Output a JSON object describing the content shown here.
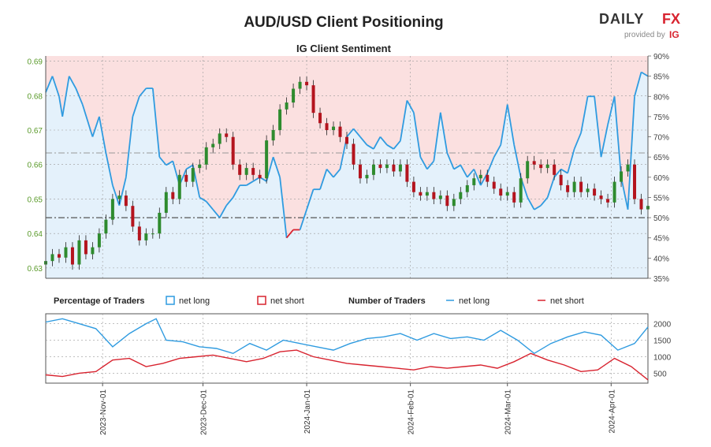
{
  "title": "AUD/USD Client Positioning",
  "subtitle": "IG Client Sentiment",
  "brand": {
    "name_left": "DAILY",
    "name_right": "FX",
    "tagline": "provided by",
    "tagline_brand": "IG"
  },
  "colors": {
    "long": "#2f9be0",
    "short": "#d8232f",
    "long_fill": "#e4f1fb",
    "short_fill": "#fbe0e0",
    "candle_up": "#2e8b2e",
    "candle_down": "#b4141e",
    "axis_left": "#5a9a2a"
  },
  "legend": {
    "pct_title": "Percentage of Traders",
    "pct_long": "net long",
    "pct_short": "net short",
    "num_title": "Number of Traders",
    "num_long": "net long",
    "num_short": "net short"
  },
  "chart_data": [
    {
      "type": "line",
      "name": "price-and-sentiment",
      "x_ticks": [
        "2023-Nov-01",
        "2023-Dec-01",
        "2024-Jan-01",
        "2024-Feb-01",
        "2024-Mar-01",
        "2024-Apr-01"
      ],
      "x_range": [
        "2023-10-15",
        "2024-04-12"
      ],
      "y_left": {
        "ticks": [
          "0.63",
          "0.64",
          "0.65",
          "0.66",
          "0.67",
          "0.68",
          "0.69"
        ],
        "range": [
          0.627,
          0.6915
        ]
      },
      "y_right": {
        "ticks": [
          "35%",
          "40%",
          "45%",
          "50%",
          "55%",
          "60%",
          "65%",
          "70%",
          "75%",
          "80%",
          "85%",
          "90%"
        ],
        "range": [
          35,
          90
        ]
      },
      "reference_lines": [
        50,
        66
      ],
      "net_long_pct": [
        [
          "2023-10-15",
          81
        ],
        [
          "2023-10-17",
          85
        ],
        [
          "2023-10-19",
          80
        ],
        [
          "2023-10-20",
          75
        ],
        [
          "2023-10-22",
          85
        ],
        [
          "2023-10-24",
          82
        ],
        [
          "2023-10-26",
          78
        ],
        [
          "2023-10-29",
          70
        ],
        [
          "2023-10-31",
          75
        ],
        [
          "2023-11-02",
          66
        ],
        [
          "2023-11-04",
          58
        ],
        [
          "2023-11-06",
          53
        ],
        [
          "2023-11-08",
          60
        ],
        [
          "2023-11-10",
          75
        ],
        [
          "2023-11-12",
          80
        ],
        [
          "2023-11-14",
          82
        ],
        [
          "2023-11-16",
          82
        ],
        [
          "2023-11-18",
          65
        ],
        [
          "2023-11-20",
          63
        ],
        [
          "2023-11-22",
          64
        ],
        [
          "2023-11-24",
          58
        ],
        [
          "2023-11-26",
          62
        ],
        [
          "2023-11-28",
          63
        ],
        [
          "2023-11-30",
          55
        ],
        [
          "2023-12-02",
          54
        ],
        [
          "2023-12-04",
          52
        ],
        [
          "2023-12-06",
          50
        ],
        [
          "2023-12-08",
          53
        ],
        [
          "2023-12-10",
          55
        ],
        [
          "2023-12-12",
          58
        ],
        [
          "2023-12-14",
          58
        ],
        [
          "2023-12-16",
          59
        ],
        [
          "2023-12-18",
          60
        ],
        [
          "2023-12-20",
          59
        ],
        [
          "2023-12-22",
          65
        ],
        [
          "2023-12-24",
          60
        ],
        [
          "2023-12-26",
          45
        ],
        [
          "2023-12-28",
          47
        ],
        [
          "2023-12-30",
          47
        ],
        [
          "2024-01-01",
          52
        ],
        [
          "2024-01-03",
          57
        ],
        [
          "2024-01-05",
          57
        ],
        [
          "2024-01-07",
          62
        ],
        [
          "2024-01-09",
          60
        ],
        [
          "2024-01-11",
          62
        ],
        [
          "2024-01-13",
          70
        ],
        [
          "2024-01-15",
          72
        ],
        [
          "2024-01-17",
          70
        ],
        [
          "2024-01-19",
          68
        ],
        [
          "2024-01-21",
          67
        ],
        [
          "2024-01-23",
          70
        ],
        [
          "2024-01-25",
          68
        ],
        [
          "2024-01-27",
          67
        ],
        [
          "2024-01-29",
          69
        ],
        [
          "2024-01-31",
          79
        ],
        [
          "2024-02-02",
          76
        ],
        [
          "2024-02-04",
          65
        ],
        [
          "2024-02-06",
          62
        ],
        [
          "2024-02-08",
          64
        ],
        [
          "2024-02-10",
          76
        ],
        [
          "2024-02-12",
          66
        ],
        [
          "2024-02-14",
          62
        ],
        [
          "2024-02-16",
          63
        ],
        [
          "2024-02-18",
          60
        ],
        [
          "2024-02-20",
          62
        ],
        [
          "2024-02-22",
          58
        ],
        [
          "2024-02-24",
          61
        ],
        [
          "2024-02-26",
          65
        ],
        [
          "2024-02-28",
          68
        ],
        [
          "2024-03-01",
          78
        ],
        [
          "2024-03-03",
          68
        ],
        [
          "2024-03-05",
          60
        ],
        [
          "2024-03-07",
          55
        ],
        [
          "2024-03-09",
          52
        ],
        [
          "2024-03-11",
          53
        ],
        [
          "2024-03-13",
          55
        ],
        [
          "2024-03-15",
          60
        ],
        [
          "2024-03-17",
          62
        ],
        [
          "2024-03-19",
          61
        ],
        [
          "2024-03-21",
          67
        ],
        [
          "2024-03-23",
          71
        ],
        [
          "2024-03-25",
          80
        ],
        [
          "2024-03-27",
          80
        ],
        [
          "2024-03-29",
          65
        ],
        [
          "2024-03-31",
          73
        ],
        [
          "2024-04-02",
          80
        ],
        [
          "2024-04-04",
          60
        ],
        [
          "2024-04-06",
          52
        ],
        [
          "2024-04-08",
          80
        ],
        [
          "2024-04-10",
          86
        ],
        [
          "2024-04-12",
          85
        ]
      ],
      "candles_close": [
        [
          "2023-10-15",
          0.632
        ],
        [
          "2023-10-17",
          0.634
        ],
        [
          "2023-10-19",
          0.633
        ],
        [
          "2023-10-21",
          0.636
        ],
        [
          "2023-10-23",
          0.631
        ],
        [
          "2023-10-25",
          0.638
        ],
        [
          "2023-10-27",
          0.634
        ],
        [
          "2023-10-29",
          0.636
        ],
        [
          "2023-10-31",
          0.64
        ],
        [
          "2023-11-02",
          0.644
        ],
        [
          "2023-11-04",
          0.65
        ],
        [
          "2023-11-06",
          0.651
        ],
        [
          "2023-11-08",
          0.648
        ],
        [
          "2023-11-10",
          0.642
        ],
        [
          "2023-11-12",
          0.638
        ],
        [
          "2023-11-14",
          0.64
        ],
        [
          "2023-11-16",
          0.64
        ],
        [
          "2023-11-18",
          0.646
        ],
        [
          "2023-11-20",
          0.652
        ],
        [
          "2023-11-22",
          0.65
        ],
        [
          "2023-11-24",
          0.657
        ],
        [
          "2023-11-26",
          0.655
        ],
        [
          "2023-11-28",
          0.659
        ],
        [
          "2023-11-30",
          0.66
        ],
        [
          "2023-12-02",
          0.665
        ],
        [
          "2023-12-04",
          0.666
        ],
        [
          "2023-12-06",
          0.669
        ],
        [
          "2023-12-08",
          0.668
        ],
        [
          "2023-12-10",
          0.66
        ],
        [
          "2023-12-12",
          0.657
        ],
        [
          "2023-12-14",
          0.659
        ],
        [
          "2023-12-16",
          0.657
        ],
        [
          "2023-12-18",
          0.656
        ],
        [
          "2023-12-20",
          0.667
        ],
        [
          "2023-12-22",
          0.67
        ],
        [
          "2023-12-24",
          0.676
        ],
        [
          "2023-12-26",
          0.678
        ],
        [
          "2023-12-28",
          0.682
        ],
        [
          "2023-12-30",
          0.684
        ],
        [
          "2024-01-01",
          0.683
        ],
        [
          "2024-01-03",
          0.675
        ],
        [
          "2024-01-05",
          0.672
        ],
        [
          "2024-01-07",
          0.67
        ],
        [
          "2024-01-09",
          0.671
        ],
        [
          "2024-01-11",
          0.668
        ],
        [
          "2024-01-13",
          0.666
        ],
        [
          "2024-01-15",
          0.66
        ],
        [
          "2024-01-17",
          0.656
        ],
        [
          "2024-01-19",
          0.657
        ],
        [
          "2024-01-21",
          0.66
        ],
        [
          "2024-01-23",
          0.659
        ],
        [
          "2024-01-25",
          0.66
        ],
        [
          "2024-01-27",
          0.658
        ],
        [
          "2024-01-29",
          0.66
        ],
        [
          "2024-01-31",
          0.655
        ],
        [
          "2024-02-02",
          0.652
        ],
        [
          "2024-02-04",
          0.651
        ],
        [
          "2024-02-06",
          0.652
        ],
        [
          "2024-02-08",
          0.65
        ],
        [
          "2024-02-10",
          0.651
        ],
        [
          "2024-02-12",
          0.648
        ],
        [
          "2024-02-14",
          0.65
        ],
        [
          "2024-02-16",
          0.652
        ],
        [
          "2024-02-18",
          0.654
        ],
        [
          "2024-02-20",
          0.656
        ],
        [
          "2024-02-22",
          0.657
        ],
        [
          "2024-02-24",
          0.655
        ],
        [
          "2024-02-26",
          0.653
        ],
        [
          "2024-02-28",
          0.651
        ],
        [
          "2024-03-01",
          0.652
        ],
        [
          "2024-03-03",
          0.649
        ],
        [
          "2024-03-05",
          0.656
        ],
        [
          "2024-03-07",
          0.661
        ],
        [
          "2024-03-09",
          0.66
        ],
        [
          "2024-03-11",
          0.659
        ],
        [
          "2024-03-13",
          0.66
        ],
        [
          "2024-03-15",
          0.657
        ],
        [
          "2024-03-17",
          0.654
        ],
        [
          "2024-03-19",
          0.652
        ],
        [
          "2024-03-21",
          0.655
        ],
        [
          "2024-03-23",
          0.652
        ],
        [
          "2024-03-25",
          0.653
        ],
        [
          "2024-03-27",
          0.651
        ],
        [
          "2024-03-29",
          0.65
        ],
        [
          "2024-03-31",
          0.649
        ],
        [
          "2024-04-02",
          0.655
        ],
        [
          "2024-04-04",
          0.658
        ],
        [
          "2024-04-06",
          0.66
        ],
        [
          "2024-04-08",
          0.65
        ],
        [
          "2024-04-10",
          0.647
        ],
        [
          "2024-04-12",
          0.648
        ]
      ]
    },
    {
      "type": "line",
      "name": "number-of-traders",
      "y_right": {
        "ticks": [
          "500",
          "1000",
          "1500",
          "2000"
        ],
        "range": [
          200,
          2300
        ]
      },
      "net_long": [
        [
          "2023-10-15",
          2050
        ],
        [
          "2023-10-20",
          2150
        ],
        [
          "2023-10-25",
          2000
        ],
        [
          "2023-10-30",
          1850
        ],
        [
          "2023-11-04",
          1300
        ],
        [
          "2023-11-09",
          1700
        ],
        [
          "2023-11-14",
          2000
        ],
        [
          "2023-11-17",
          2150
        ],
        [
          "2023-11-20",
          1500
        ],
        [
          "2023-11-25",
          1450
        ],
        [
          "2023-11-30",
          1300
        ],
        [
          "2023-12-05",
          1250
        ],
        [
          "2023-12-10",
          1100
        ],
        [
          "2023-12-15",
          1400
        ],
        [
          "2023-12-20",
          1200
        ],
        [
          "2023-12-25",
          1500
        ],
        [
          "2023-12-30",
          1400
        ],
        [
          "2024-01-04",
          1300
        ],
        [
          "2024-01-09",
          1200
        ],
        [
          "2024-01-14",
          1400
        ],
        [
          "2024-01-19",
          1550
        ],
        [
          "2024-01-24",
          1600
        ],
        [
          "2024-01-29",
          1700
        ],
        [
          "2024-02-03",
          1500
        ],
        [
          "2024-02-08",
          1700
        ],
        [
          "2024-02-13",
          1550
        ],
        [
          "2024-02-18",
          1600
        ],
        [
          "2024-02-23",
          1500
        ],
        [
          "2024-02-28",
          1800
        ],
        [
          "2024-03-04",
          1500
        ],
        [
          "2024-03-09",
          1100
        ],
        [
          "2024-03-14",
          1400
        ],
        [
          "2024-03-19",
          1600
        ],
        [
          "2024-03-24",
          1750
        ],
        [
          "2024-03-29",
          1650
        ],
        [
          "2024-04-03",
          1200
        ],
        [
          "2024-04-08",
          1400
        ],
        [
          "2024-04-12",
          1900
        ]
      ],
      "net_short": [
        [
          "2023-10-15",
          450
        ],
        [
          "2023-10-20",
          400
        ],
        [
          "2023-10-25",
          500
        ],
        [
          "2023-10-30",
          550
        ],
        [
          "2023-11-04",
          900
        ],
        [
          "2023-11-09",
          950
        ],
        [
          "2023-11-14",
          700
        ],
        [
          "2023-11-19",
          800
        ],
        [
          "2023-11-24",
          950
        ],
        [
          "2023-11-29",
          1000
        ],
        [
          "2023-12-04",
          1050
        ],
        [
          "2023-12-09",
          950
        ],
        [
          "2023-12-14",
          850
        ],
        [
          "2023-12-19",
          950
        ],
        [
          "2023-12-24",
          1150
        ],
        [
          "2023-12-29",
          1200
        ],
        [
          "2024-01-03",
          1000
        ],
        [
          "2024-01-08",
          900
        ],
        [
          "2024-01-13",
          800
        ],
        [
          "2024-01-18",
          750
        ],
        [
          "2024-01-23",
          700
        ],
        [
          "2024-01-28",
          650
        ],
        [
          "2024-02-02",
          600
        ],
        [
          "2024-02-07",
          700
        ],
        [
          "2024-02-12",
          650
        ],
        [
          "2024-02-17",
          700
        ],
        [
          "2024-02-22",
          750
        ],
        [
          "2024-02-27",
          650
        ],
        [
          "2024-03-03",
          850
        ],
        [
          "2024-03-08",
          1100
        ],
        [
          "2024-03-13",
          900
        ],
        [
          "2024-03-18",
          750
        ],
        [
          "2024-03-23",
          550
        ],
        [
          "2024-03-28",
          600
        ],
        [
          "2024-04-02",
          950
        ],
        [
          "2024-04-07",
          700
        ],
        [
          "2024-04-12",
          300
        ]
      ]
    }
  ]
}
